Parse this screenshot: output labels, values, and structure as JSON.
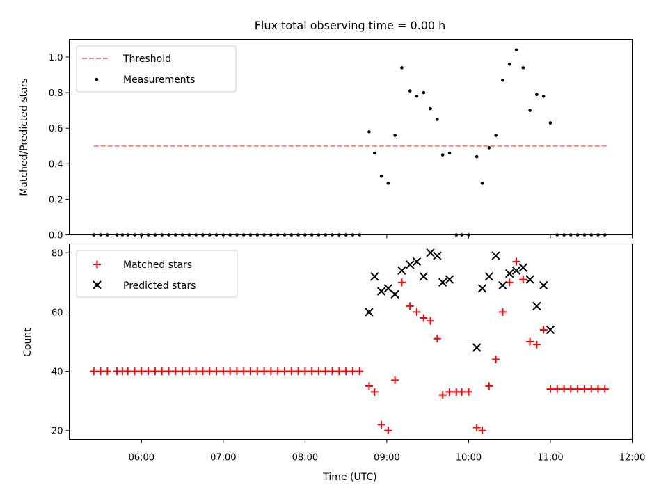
{
  "chart_data": [
    {
      "type": "scatter",
      "title": "Flux total observing time = 0.00 h",
      "xlabel": "",
      "ylabel": "Matched/Predicted stars",
      "ylim": [
        0,
        1.1
      ],
      "yticks": [
        "0.0",
        "0.2",
        "0.4",
        "0.6",
        "0.8",
        "1.0"
      ],
      "xlim": [
        "05:07",
        "12:00"
      ],
      "grid": false,
      "legend_placement": "top-left",
      "threshold": {
        "name": "Threshold",
        "y": 0.5,
        "x_start": "05:25",
        "x_end": "11:42",
        "color": "#ff8080",
        "style": "dashed"
      },
      "series": [
        {
          "name": "Measurements",
          "color": "#000000",
          "marker": "dot",
          "x": [
            "05:25",
            "05:30",
            "05:35",
            "05:42",
            "05:46",
            "05:50",
            "05:55",
            "06:00",
            "06:05",
            "06:10",
            "06:15",
            "06:20",
            "06:25",
            "06:30",
            "06:35",
            "06:40",
            "06:45",
            "06:50",
            "06:55",
            "07:00",
            "07:05",
            "07:10",
            "07:15",
            "07:20",
            "07:25",
            "07:30",
            "07:35",
            "07:40",
            "07:45",
            "07:50",
            "07:55",
            "08:00",
            "08:05",
            "08:10",
            "08:15",
            "08:20",
            "08:25",
            "08:30",
            "08:35",
            "08:40",
            "08:47",
            "08:51",
            "08:56",
            "09:01",
            "09:06",
            "09:11",
            "09:17",
            "09:22",
            "09:27",
            "09:32",
            "09:37",
            "09:41",
            "09:46",
            "09:51",
            "09:55",
            "10:00",
            "10:06",
            "10:10",
            "10:15",
            "10:20",
            "10:25",
            "10:30",
            "10:35",
            "10:40",
            "10:45",
            "10:50",
            "10:55",
            "11:00",
            "11:05",
            "11:10",
            "11:15",
            "11:20",
            "11:25",
            "11:30",
            "11:35",
            "11:40"
          ],
          "y": [
            0,
            0,
            0,
            0,
            0,
            0,
            0,
            0,
            0,
            0,
            0,
            0,
            0,
            0,
            0,
            0,
            0,
            0,
            0,
            0,
            0,
            0,
            0,
            0,
            0,
            0,
            0,
            0,
            0,
            0,
            0,
            0,
            0,
            0,
            0,
            0,
            0,
            0,
            0,
            0,
            0.58,
            0.46,
            0.33,
            0.29,
            0.56,
            0.94,
            0.81,
            0.78,
            0.8,
            0.71,
            0.65,
            0.45,
            0.46,
            0,
            0,
            0,
            0.44,
            0.29,
            0.49,
            0.56,
            0.87,
            0.96,
            1.04,
            0.94,
            0.7,
            0.79,
            0.78,
            0.63,
            0,
            0,
            0,
            0,
            0,
            0,
            0,
            0
          ]
        }
      ]
    },
    {
      "type": "scatter",
      "title": "",
      "xlabel": "Time (UTC)",
      "ylabel": "Count",
      "ylim": [
        17,
        83
      ],
      "yticks": [
        "20",
        "40",
        "60",
        "80"
      ],
      "xlim": [
        "05:07",
        "12:00"
      ],
      "xticks": [
        "06:00",
        "07:00",
        "08:00",
        "09:00",
        "10:00",
        "11:00",
        "12:00"
      ],
      "grid": false,
      "legend_placement": "top-left",
      "series": [
        {
          "name": "Matched stars",
          "color": "#ff0000",
          "marker": "plus",
          "x": [
            "05:25",
            "05:30",
            "05:35",
            "05:42",
            "05:46",
            "05:50",
            "05:55",
            "06:00",
            "06:05",
            "06:10",
            "06:15",
            "06:20",
            "06:25",
            "06:30",
            "06:35",
            "06:40",
            "06:45",
            "06:50",
            "06:55",
            "07:00",
            "07:05",
            "07:10",
            "07:15",
            "07:20",
            "07:25",
            "07:30",
            "07:35",
            "07:40",
            "07:45",
            "07:50",
            "07:55",
            "08:00",
            "08:05",
            "08:10",
            "08:15",
            "08:20",
            "08:25",
            "08:30",
            "08:35",
            "08:40",
            "08:47",
            "08:51",
            "08:56",
            "09:01",
            "09:06",
            "09:11",
            "09:17",
            "09:22",
            "09:27",
            "09:32",
            "09:37",
            "09:41",
            "09:46",
            "09:51",
            "09:55",
            "10:00",
            "10:06",
            "10:10",
            "10:15",
            "10:20",
            "10:25",
            "10:30",
            "10:35",
            "10:40",
            "10:45",
            "10:50",
            "10:55",
            "11:00",
            "11:05",
            "11:10",
            "11:15",
            "11:20",
            "11:25",
            "11:30",
            "11:35",
            "11:40"
          ],
          "y": [
            40,
            40,
            40,
            40,
            40,
            40,
            40,
            40,
            40,
            40,
            40,
            40,
            40,
            40,
            40,
            40,
            40,
            40,
            40,
            40,
            40,
            40,
            40,
            40,
            40,
            40,
            40,
            40,
            40,
            40,
            40,
            40,
            40,
            40,
            40,
            40,
            40,
            40,
            40,
            40,
            35,
            33,
            22,
            20,
            37,
            70,
            62,
            60,
            58,
            57,
            51,
            32,
            33,
            33,
            33,
            33,
            21,
            20,
            35,
            44,
            60,
            70,
            77,
            71,
            50,
            49,
            54,
            34,
            34,
            34,
            34,
            34,
            34,
            34,
            34,
            34
          ]
        },
        {
          "name": "Predicted stars",
          "color": "#000000",
          "marker": "x",
          "x": [
            "08:47",
            "08:51",
            "08:56",
            "09:01",
            "09:06",
            "09:11",
            "09:17",
            "09:22",
            "09:27",
            "09:32",
            "09:37",
            "09:41",
            "09:46",
            "10:06",
            "10:10",
            "10:15",
            "10:20",
            "10:25",
            "10:30",
            "10:35",
            "10:40",
            "10:45",
            "10:50",
            "10:55",
            "11:00"
          ],
          "y": [
            60,
            72,
            67,
            68,
            66,
            74,
            76,
            77,
            72,
            80,
            79,
            70,
            71,
            48,
            68,
            72,
            79,
            69,
            73,
            74,
            75,
            71,
            62,
            69,
            54
          ]
        }
      ]
    }
  ]
}
